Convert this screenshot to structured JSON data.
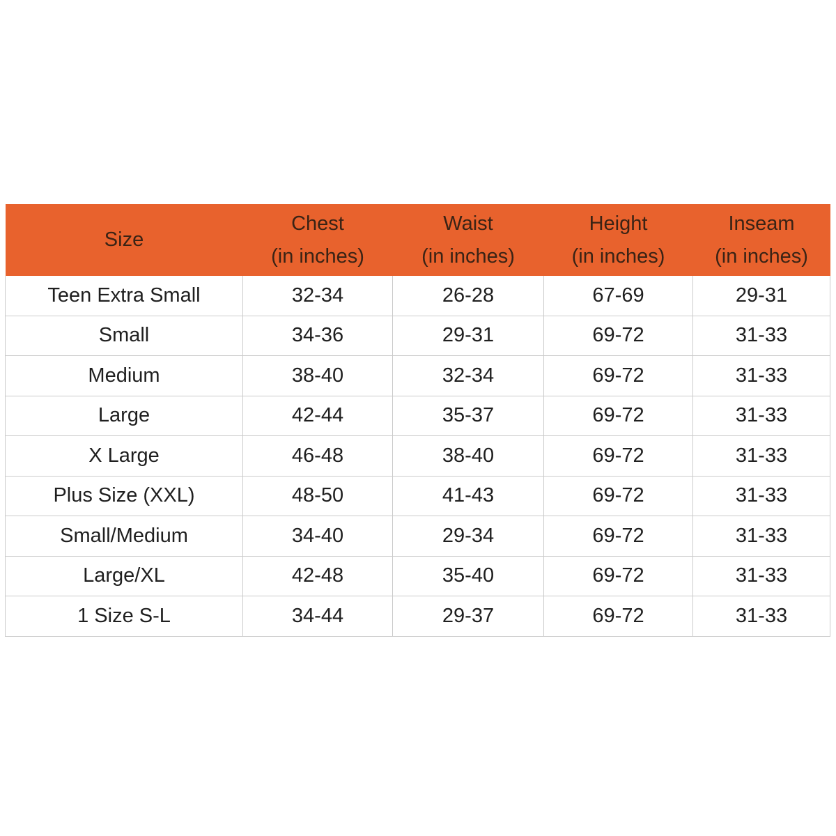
{
  "colors": {
    "header_bg": "#E8622D",
    "header_text": "#3A2315",
    "body_text": "#1F1F1F",
    "grid_line": "#CBCBCB",
    "page_bg": "#FFFFFF"
  },
  "table": {
    "header": {
      "columns": [
        {
          "label": "Size",
          "sub": ""
        },
        {
          "label": "Chest",
          "sub": "(in inches)"
        },
        {
          "label": "Waist",
          "sub": "(in inches)"
        },
        {
          "label": "Height",
          "sub": "(in inches)"
        },
        {
          "label": "Inseam",
          "sub": "(in inches)"
        }
      ]
    },
    "rows": [
      [
        "Teen Extra Small",
        "32-34",
        "26-28",
        "67-69",
        "29-31"
      ],
      [
        "Small",
        "34-36",
        "29-31",
        "69-72",
        "31-33"
      ],
      [
        "Medium",
        "38-40",
        "32-34",
        "69-72",
        "31-33"
      ],
      [
        "Large",
        "42-44",
        "35-37",
        "69-72",
        "31-33"
      ],
      [
        "X Large",
        "46-48",
        "38-40",
        "69-72",
        "31-33"
      ],
      [
        "Plus Size (XXL)",
        "48-50",
        "41-43",
        "69-72",
        "31-33"
      ],
      [
        "Small/Medium",
        "34-40",
        "29-34",
        "69-72",
        "31-33"
      ],
      [
        "Large/XL",
        "42-48",
        "35-40",
        "69-72",
        "31-33"
      ],
      [
        "1 Size S-L",
        "34-44",
        "29-37",
        "69-72",
        "31-33"
      ]
    ]
  },
  "chart_data": {
    "type": "table",
    "columns": [
      "Size",
      "Chest (in inches)",
      "Waist (in inches)",
      "Height (in inches)",
      "Inseam (in inches)"
    ],
    "rows": [
      [
        "Teen Extra Small",
        "32-34",
        "26-28",
        "67-69",
        "29-31"
      ],
      [
        "Small",
        "34-36",
        "29-31",
        "69-72",
        "31-33"
      ],
      [
        "Medium",
        "38-40",
        "32-34",
        "69-72",
        "31-33"
      ],
      [
        "Large",
        "42-44",
        "35-37",
        "69-72",
        "31-33"
      ],
      [
        "X Large",
        "46-48",
        "38-40",
        "69-72",
        "31-33"
      ],
      [
        "Plus Size (XXL)",
        "48-50",
        "41-43",
        "69-72",
        "31-33"
      ],
      [
        "Small/Medium",
        "34-40",
        "29-34",
        "69-72",
        "31-33"
      ],
      [
        "Large/XL",
        "42-48",
        "35-40",
        "69-72",
        "31-33"
      ],
      [
        "1 Size S-L",
        "34-44",
        "29-37",
        "69-72",
        "31-33"
      ]
    ],
    "header_bg": "#E8622D",
    "legend_position": "none",
    "grid": true
  }
}
